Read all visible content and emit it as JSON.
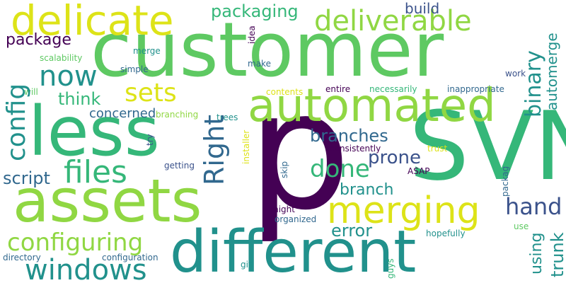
{
  "palette": {
    "deep_purple": "#440154",
    "indigo": "#3b528b",
    "blue": "#31688e",
    "teal": "#21918c",
    "green": "#35b779",
    "light_green": "#5ec962",
    "lime": "#90d743",
    "yellow": "#dde318"
  },
  "words": {
    "customer": "customer",
    "p": "p",
    "svn": "SVN",
    "assets": "assets",
    "less": "less",
    "different": "different",
    "automated": "automated",
    "delicate": "delicate",
    "merging": "merging",
    "deliverable": "deliverable",
    "right": "Right",
    "files": "files",
    "config": "config",
    "now": "now",
    "configuring": "configuring",
    "windows": "windows",
    "binary": "binary",
    "sets": "sets",
    "done": "done",
    "packaging": "packaging",
    "hand": "hand",
    "automerge": "automerge",
    "branches": "branches",
    "package": "package",
    "think": "think",
    "trunk": "trunk",
    "using": "using",
    "prone": "prone",
    "branch": "branch",
    "error": "error",
    "script": "script",
    "concerned": "concerned",
    "build": "build",
    "scalability": "scalability",
    "merge": "merge",
    "idea": "idea",
    "make": "make",
    "simple": "simple",
    "work": "work",
    "will": "will",
    "contents": "contents",
    "entire": "entire",
    "necessarily": "necessarily",
    "inappropriate": "inappropriate",
    "branching": "branching",
    "trees": "trees",
    "consistently": "consistently",
    "trust": "trust",
    "try": "try",
    "installer": "installer",
    "getting": "getting",
    "skip": "skip",
    "asap": "ASAP",
    "packag": "packag",
    "might": "might",
    "organized": "organized",
    "hopefully": "hopefully",
    "use": "use",
    "directory": "directory",
    "configuration": "configuration",
    "git": "git",
    "guys": "guys"
  }
}
